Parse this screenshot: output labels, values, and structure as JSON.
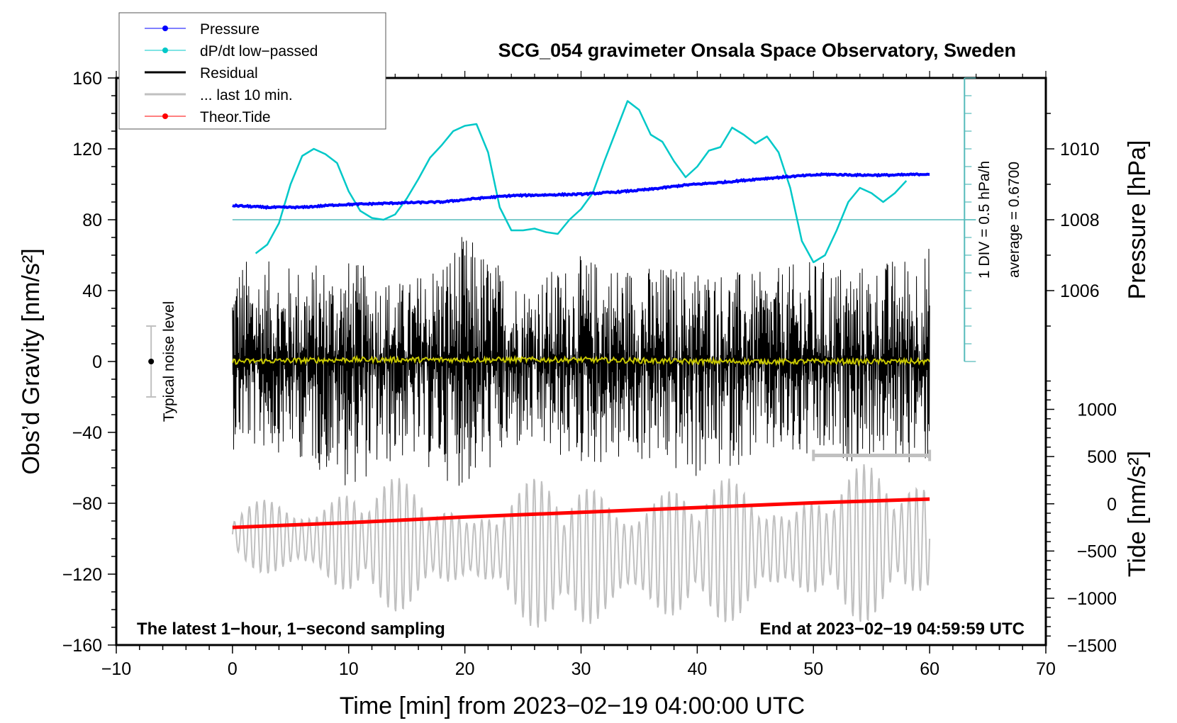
{
  "chart_data": {
    "type": "line",
    "title": "SCG_054 gravimeter Onsala Space Observatory, Sweden",
    "xlabel": "Time [min] from 2023−02−19 04:00:00 UTC",
    "ylabel_left": "Obs’d Gravity [nm/s²]",
    "ylabel_right_top": "Pressure [hPa]",
    "ylabel_right_bottom": "Tide [nm/s²]",
    "xlim": [
      -10,
      70
    ],
    "ylim": [
      -160,
      160
    ],
    "x_ticks": [
      -10,
      0,
      10,
      20,
      30,
      40,
      50,
      60,
      70
    ],
    "x_tick_labels": [
      "−10",
      "0",
      "10",
      "20",
      "30",
      "40",
      "50",
      "60",
      "70"
    ],
    "y_ticks": [
      160,
      120,
      80,
      40,
      0,
      -40,
      -80,
      -120,
      -160
    ],
    "y_tick_labels": [
      "160",
      "120",
      "80",
      "40",
      "0",
      "−40",
      "−80",
      "−120",
      "−160"
    ],
    "pressure_axis": {
      "ticks": [
        1010,
        1008,
        1006
      ],
      "tick_labels": [
        "1010",
        "1008",
        "1006"
      ],
      "gravity_equivalent": [
        120,
        80,
        40
      ]
    },
    "tide_axis": {
      "ticks": [
        1000,
        500,
        0,
        -500,
        -1000,
        -1500
      ],
      "tick_labels": [
        "1000",
        "500",
        "0",
        "−500",
        "−1000",
        "−1500"
      ],
      "gravity_equivalent": [
        -27,
        -53.6,
        -80.3,
        -107,
        -133.5,
        -160
      ]
    },
    "legend": {
      "placement": "top-left",
      "entries": [
        {
          "label": "Pressure",
          "color": "#0000ff",
          "marker": true
        },
        {
          "label": "dP/dt low−passed",
          "color": "#00c8c8",
          "marker": true
        },
        {
          "label": "Residual",
          "color": "#000000",
          "marker": false
        },
        {
          "label": "... last 10 min.",
          "color": "#c0c0c0",
          "marker": false
        },
        {
          "label": "Theor.Tide",
          "color": "#ff0000",
          "marker": true
        }
      ]
    },
    "annotations": {
      "left_bottom": "The latest 1−hour, 1−second sampling",
      "right_bottom": "End at 2023−02−19 04:59:59 UTC",
      "noise_label": "Typical noise level",
      "div_label": "1 DIV = 0.5 hPa/h",
      "avg_label": "average = 0.6700"
    },
    "noise_bar": {
      "x": -7,
      "center": 0,
      "half_range": 20
    },
    "last10_marker": {
      "x_start": 50,
      "x_end": 60,
      "y": -53
    },
    "series": [
      {
        "name": "Pressure",
        "unit": "hPa",
        "color": "#0000ff",
        "x": [
          0,
          3,
          6,
          9,
          12,
          15,
          18,
          21,
          24,
          27,
          30,
          33,
          36,
          39,
          42,
          45,
          48,
          51,
          54,
          57,
          60
        ],
        "values": [
          1008.4,
          1008.35,
          1008.35,
          1008.42,
          1008.45,
          1008.48,
          1008.5,
          1008.6,
          1008.68,
          1008.7,
          1008.72,
          1008.78,
          1008.86,
          1008.98,
          1009.05,
          1009.14,
          1009.22,
          1009.28,
          1009.26,
          1009.26,
          1009.29
        ]
      },
      {
        "name": "dP/dt low-passed",
        "color": "#00c8c8",
        "unit": "gravity-axis units (1 DIV = 0.5 hPa/h; baseline 80)",
        "x": [
          2.0,
          3.0,
          4.0,
          5.0,
          6.0,
          7.0,
          8.0,
          9.0,
          10.0,
          11.0,
          12.0,
          13.0,
          14.0,
          15.0,
          16.0,
          17.0,
          18.0,
          19.0,
          20.0,
          21.0,
          22.0,
          23.0,
          24.0,
          25.0,
          26.0,
          27.0,
          28.0,
          29.0,
          30.0,
          31.0,
          32.0,
          33.0,
          34.0,
          35.0,
          36.0,
          37.0,
          38.0,
          39.0,
          40.0,
          41.0,
          42.0,
          43.0,
          44.0,
          45.0,
          46.0,
          47.0,
          48.0,
          49.0,
          50.0,
          51.0,
          52.0,
          53.0,
          54.0,
          55.0,
          56.0,
          57.0,
          58.0
        ],
        "values": [
          61,
          66,
          78,
          100,
          116,
          120,
          117,
          112,
          96,
          85,
          81,
          80,
          83,
          92,
          103,
          115,
          122,
          130,
          133,
          134,
          118,
          87,
          74,
          74,
          75,
          73,
          72,
          80,
          86,
          95,
          113,
          130,
          147,
          142,
          128,
          124,
          113,
          104,
          110,
          119,
          121,
          132,
          128,
          123,
          127,
          118,
          98,
          68,
          56,
          60,
          74,
          90,
          98,
          95,
          90,
          95,
          102
        ]
      },
      {
        "name": "Residual",
        "color": "#000000",
        "description": "1-second residual gravity, dense oscillation around 0 with amplitude up to ~±70",
        "x": [
          0,
          5,
          10,
          15,
          20,
          25,
          30,
          35,
          40,
          45,
          50,
          55,
          60
        ],
        "envelope_max": [
          60,
          55,
          58,
          45,
          73,
          45,
          60,
          55,
          55,
          50,
          58,
          55,
          66
        ],
        "envelope_min": [
          -50,
          -52,
          -72,
          -55,
          -73,
          -50,
          -60,
          -58,
          -68,
          -55,
          -60,
          -55,
          -60
        ]
      },
      {
        "name": "Residual mean (smoothed)",
        "color": "#c8c800",
        "x": [
          0,
          10,
          20,
          30,
          40,
          50,
          60
        ],
        "values": [
          0,
          1,
          1,
          1,
          0,
          0,
          0
        ]
      },
      {
        "name": "... last 10 min.",
        "color": "#c0c0c0",
        "description": "Last 10-minute residual replotted over the full time span, offset around -100 with amplitude ~±50",
        "offset": -100,
        "x": [
          0,
          10,
          20,
          30,
          40,
          50,
          60
        ],
        "envelope_max": [
          -80,
          -62,
          -70,
          -60,
          -65,
          -60,
          -55
        ],
        "envelope_min": [
          -115,
          -143,
          -140,
          -160,
          -150,
          -150,
          -145
        ]
      },
      {
        "name": "Theor.Tide",
        "unit": "nm/s²",
        "color": "#ff0000",
        "x": [
          0,
          10,
          20,
          30,
          40,
          50,
          60
        ],
        "values": [
          -250,
          -200,
          -140,
          -90,
          -40,
          10,
          50
        ]
      }
    ]
  }
}
